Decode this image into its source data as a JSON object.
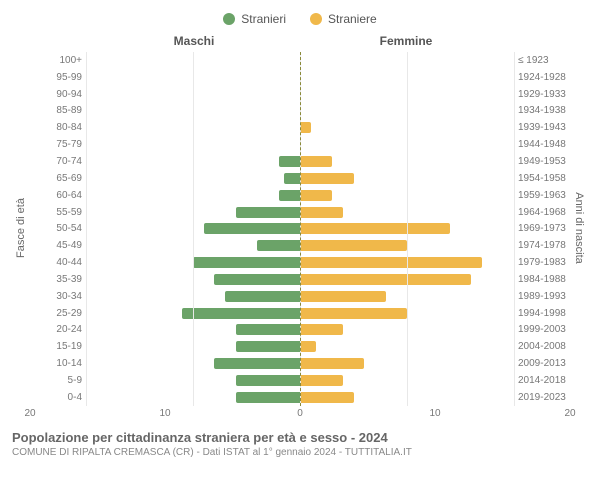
{
  "legend": {
    "male": {
      "label": "Stranieri",
      "color": "#6ba368"
    },
    "female": {
      "label": "Straniere",
      "color": "#f0b84a"
    }
  },
  "chart": {
    "type": "population-pyramid",
    "side_title_left": "Maschi",
    "side_title_right": "Femmine",
    "ylabel_left": "Fasce di età",
    "ylabel_right": "Anni di nascita",
    "xmax": 20,
    "xticks_left": [
      20,
      10,
      0
    ],
    "xticks_right": [
      0,
      10,
      20
    ],
    "grid_color": "#e8e8e8",
    "center_line_color": "#8a8a3a",
    "background_color": "#ffffff",
    "rows": [
      {
        "age": "100+",
        "birth": "≤ 1923",
        "m": 0,
        "f": 0
      },
      {
        "age": "95-99",
        "birth": "1924-1928",
        "m": 0,
        "f": 0
      },
      {
        "age": "90-94",
        "birth": "1929-1933",
        "m": 0,
        "f": 0
      },
      {
        "age": "85-89",
        "birth": "1934-1938",
        "m": 0,
        "f": 0
      },
      {
        "age": "80-84",
        "birth": "1939-1943",
        "m": 0,
        "f": 1
      },
      {
        "age": "75-79",
        "birth": "1944-1948",
        "m": 0,
        "f": 0
      },
      {
        "age": "70-74",
        "birth": "1949-1953",
        "m": 2,
        "f": 3
      },
      {
        "age": "65-69",
        "birth": "1954-1958",
        "m": 1.5,
        "f": 5
      },
      {
        "age": "60-64",
        "birth": "1959-1963",
        "m": 2,
        "f": 3
      },
      {
        "age": "55-59",
        "birth": "1964-1968",
        "m": 6,
        "f": 4
      },
      {
        "age": "50-54",
        "birth": "1969-1973",
        "m": 9,
        "f": 14
      },
      {
        "age": "45-49",
        "birth": "1974-1978",
        "m": 4,
        "f": 10
      },
      {
        "age": "40-44",
        "birth": "1979-1983",
        "m": 10,
        "f": 17
      },
      {
        "age": "35-39",
        "birth": "1984-1988",
        "m": 8,
        "f": 16
      },
      {
        "age": "30-34",
        "birth": "1989-1993",
        "m": 7,
        "f": 8
      },
      {
        "age": "25-29",
        "birth": "1994-1998",
        "m": 11,
        "f": 10
      },
      {
        "age": "20-24",
        "birth": "1999-2003",
        "m": 6,
        "f": 4
      },
      {
        "age": "15-19",
        "birth": "2004-2008",
        "m": 6,
        "f": 1.5
      },
      {
        "age": "10-14",
        "birth": "2009-2013",
        "m": 8,
        "f": 6
      },
      {
        "age": "5-9",
        "birth": "2014-2018",
        "m": 6,
        "f": 4
      },
      {
        "age": "0-4",
        "birth": "2019-2023",
        "m": 6,
        "f": 5
      }
    ]
  },
  "footer": {
    "title": "Popolazione per cittadinanza straniera per età e sesso - 2024",
    "subtitle": "COMUNE DI RIPALTA CREMASCA (CR) - Dati ISTAT al 1° gennaio 2024 - TUTTITALIA.IT"
  }
}
